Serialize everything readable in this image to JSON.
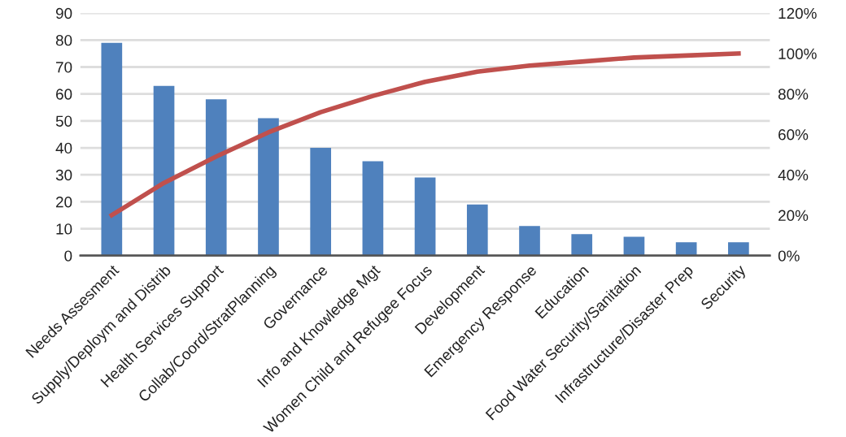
{
  "chart_data": {
    "type": "bar",
    "categories": [
      "Needs Assesment",
      "Supply/Deploym and Distrib",
      "Health Services Support",
      "Collab/Coord/StratPlanning",
      "Governance",
      "Info and Knowledge Mgt",
      "Women Child and Refugee Focus",
      "Development",
      "Emergency Response",
      "Education",
      "Food Water Security/Sanitation",
      "Infrastructure/Disaster Prep",
      "Security"
    ],
    "series": [
      {
        "color": "#4f81bd",
        "values": [
          79,
          63,
          58,
          51,
          40,
          35,
          29,
          19,
          11,
          8,
          7,
          5,
          5
        ]
      },
      {
        "type": "line",
        "axis": "y2",
        "color": "#c0504d",
        "values": [
          20,
          36,
          49,
          61,
          71,
          79,
          86,
          91,
          94,
          96,
          98,
          99,
          100
        ]
      }
    ],
    "ylim": [
      0,
      90
    ],
    "yticks": [
      0,
      10,
      20,
      30,
      40,
      50,
      60,
      70,
      80,
      90
    ],
    "y2lim": [
      0,
      120
    ],
    "y2ticks": [
      {
        "value": 0,
        "label": "0%"
      },
      {
        "value": 20,
        "label": "20%"
      },
      {
        "value": 40,
        "label": "40%"
      },
      {
        "value": 60,
        "label": "60%"
      },
      {
        "value": 80,
        "label": "80%"
      },
      {
        "value": 100,
        "label": "100%"
      },
      {
        "value": 120,
        "label": "120%"
      }
    ],
    "grid": "y",
    "marker": "none",
    "line_style": "solid"
  }
}
